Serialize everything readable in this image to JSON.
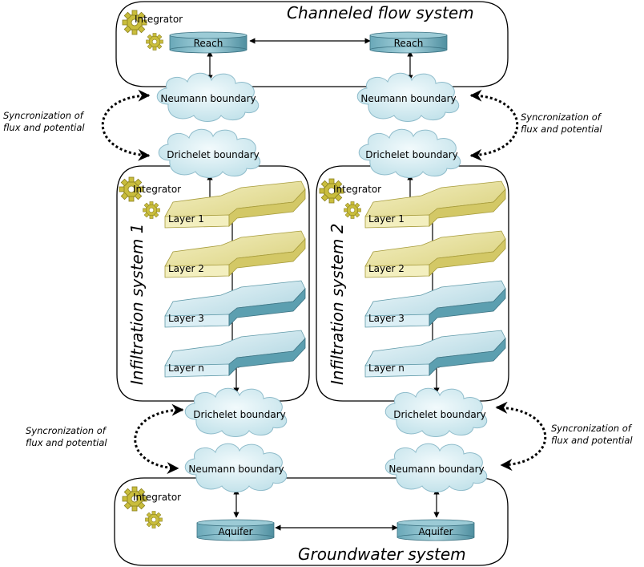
{
  "systems": {
    "channeled": "Channeled flow system",
    "infiltration1": "Infiltration system 1",
    "infiltration2": "Infiltration system 2",
    "groundwater": "Groundwater system"
  },
  "integrator_label": "Integrator",
  "reach_label": "Reach",
  "aquifer_label": "Aquifer",
  "neumann_label": "Neumann boundary",
  "drichelet_label": "Drichelet boundary",
  "layers": [
    "Layer 1",
    "Layer 2",
    "Layer 3",
    "Layer n"
  ],
  "sync": {
    "line1": "Syncronization of",
    "line2": "flux and potential"
  },
  "colors": {
    "cylinder": "#7fb8c6",
    "layer_yellow": "#e8e2a0",
    "layer_blue": "#cde6ee",
    "cloud": "#d6ecf2",
    "gear": "#c9bd3c"
  },
  "icons": {
    "integrator": "gear-icon"
  }
}
